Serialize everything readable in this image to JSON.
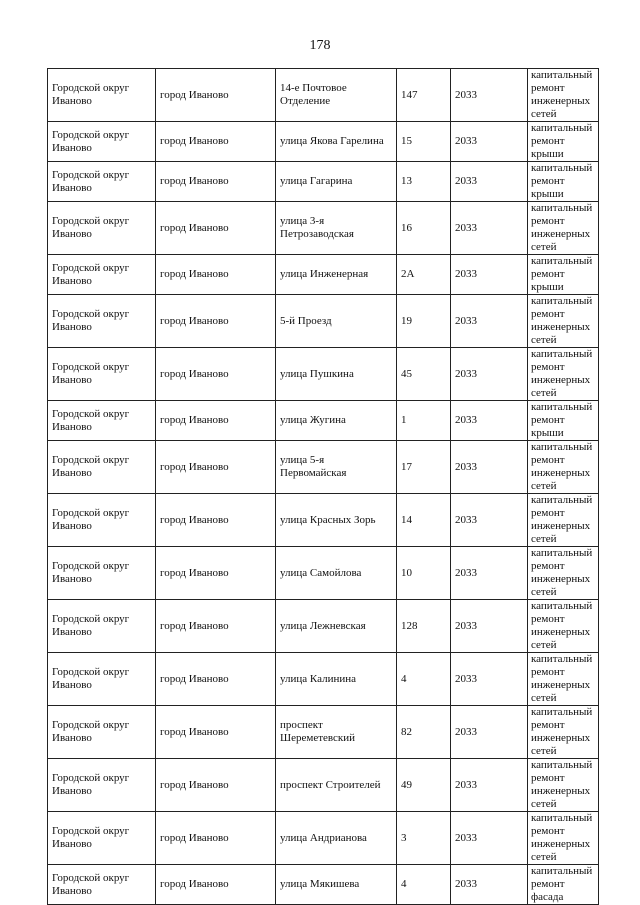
{
  "page_number": "178",
  "rows": [
    {
      "district": "Городской округ Иваново",
      "city": "город Иваново",
      "street": "14-е Почтовое Отделение",
      "house": "147",
      "year": "2033",
      "work": "капитальный ремонт инженерных сетей"
    },
    {
      "district": "Городской округ Иваново",
      "city": "город Иваново",
      "street": "улица Якова Гарелина",
      "house": "15",
      "year": "2033",
      "work": "капитальный ремонт крыши"
    },
    {
      "district": "Городской округ Иваново",
      "city": "город Иваново",
      "street": "улица Гагарина",
      "house": "13",
      "year": "2033",
      "work": "капитальный ремонт крыши"
    },
    {
      "district": "Городской округ Иваново",
      "city": "город Иваново",
      "street": "улица 3-я Петрозаводская",
      "house": "16",
      "year": "2033",
      "work": "капитальный ремонт инженерных сетей"
    },
    {
      "district": "Городской округ Иваново",
      "city": "город Иваново",
      "street": "улица Инженерная",
      "house": "2А",
      "year": "2033",
      "work": "капитальный ремонт крыши"
    },
    {
      "district": "Городской округ Иваново",
      "city": "город Иваново",
      "street": "5-й Проезд",
      "house": "19",
      "year": "2033",
      "work": "капитальный ремонт инженерных сетей"
    },
    {
      "district": "Городской округ Иваново",
      "city": "город Иваново",
      "street": "улица Пушкина",
      "house": "45",
      "year": "2033",
      "work": "капитальный ремонт инженерных сетей"
    },
    {
      "district": "Городской округ Иваново",
      "city": "город Иваново",
      "street": "улица Жугина",
      "house": "1",
      "year": "2033",
      "work": "капитальный ремонт крыши"
    },
    {
      "district": "Городской округ Иваново",
      "city": "город Иваново",
      "street": "улица 5-я Первомайская",
      "house": "17",
      "year": "2033",
      "work": "капитальный ремонт инженерных сетей"
    },
    {
      "district": "Городской округ Иваново",
      "city": "город Иваново",
      "street": "улица Красных Зорь",
      "house": "14",
      "year": "2033",
      "work": "капитальный ремонт инженерных сетей"
    },
    {
      "district": "Городской округ Иваново",
      "city": "город Иваново",
      "street": "улица Самойлова",
      "house": "10",
      "year": "2033",
      "work": "капитальный ремонт инженерных сетей"
    },
    {
      "district": "Городской округ Иваново",
      "city": "город Иваново",
      "street": "улица Лежневская",
      "house": "128",
      "year": "2033",
      "work": "капитальный ремонт инженерных сетей"
    },
    {
      "district": "Городской округ Иваново",
      "city": "город Иваново",
      "street": "улица Калинина",
      "house": "4",
      "year": "2033",
      "work": "капитальный ремонт инженерных сетей"
    },
    {
      "district": "Городской округ Иваново",
      "city": "город Иваново",
      "street": "проспект Шереметевский",
      "house": "82",
      "year": "2033",
      "work": "капитальный ремонт инженерных сетей"
    },
    {
      "district": "Городской округ Иваново",
      "city": "город Иваново",
      "street": "проспект Строителей",
      "house": "49",
      "year": "2033",
      "work": "капитальный ремонт инженерных сетей"
    },
    {
      "district": "Городской округ Иваново",
      "city": "город Иваново",
      "street": "улица Андрианова",
      "house": "3",
      "year": "2033",
      "work": "капитальный ремонт инженерных сетей"
    },
    {
      "district": "Городской округ Иваново",
      "city": "город Иваново",
      "street": "улица Мякишева",
      "house": "4",
      "year": "2033",
      "work": "капитальный ремонт фасада"
    }
  ]
}
